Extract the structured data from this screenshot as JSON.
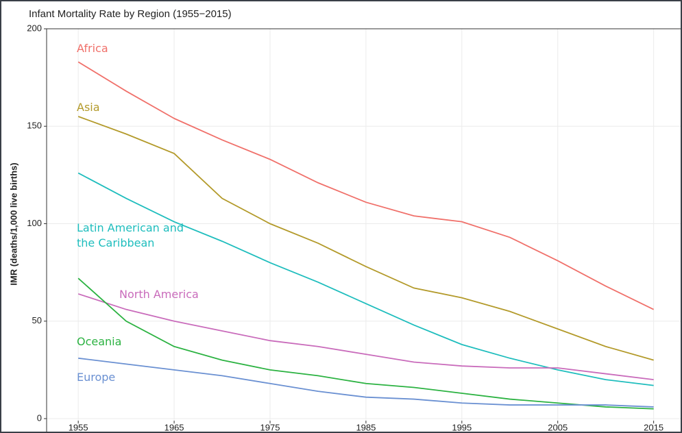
{
  "chart_data": {
    "type": "line",
    "title": "Infant Mortality Rate by Region (1955−2015)",
    "y_label": "IMR (deaths/1,000 live births)",
    "x": [
      1955,
      1960,
      1965,
      1970,
      1975,
      1980,
      1985,
      1990,
      1995,
      2000,
      2005,
      2010,
      2015
    ],
    "series": [
      {
        "name": "Africa",
        "color": "#f0706a",
        "values": [
          183,
          168,
          154,
          143,
          133,
          121,
          111,
          104,
          101,
          93,
          81,
          68,
          56
        ]
      },
      {
        "name": "Asia",
        "color": "#b39a2a",
        "values": [
          155,
          146,
          136,
          113,
          100,
          90,
          78,
          67,
          62,
          55,
          46,
          37,
          30
        ]
      },
      {
        "name": "Latin American and the Caribbean",
        "color": "#1ebdbd",
        "values": [
          126,
          113,
          101,
          91,
          80,
          70,
          59,
          48,
          38,
          31,
          25,
          20,
          17
        ]
      },
      {
        "name": "North America",
        "color": "#c96bbb",
        "values": [
          64,
          56,
          50,
          45,
          40,
          37,
          33,
          29,
          27,
          26,
          26,
          23,
          20
        ]
      },
      {
        "name": "Oceania",
        "color": "#2bb241",
        "values": [
          72,
          50,
          37,
          30,
          25,
          22,
          18,
          16,
          13,
          10,
          8,
          6,
          5
        ]
      },
      {
        "name": "Europe",
        "color": "#6a90d2",
        "values": [
          31,
          28,
          25,
          22,
          18,
          14,
          11,
          10,
          8,
          7,
          7,
          7,
          6
        ]
      }
    ],
    "xlim": [
      1951.7,
      2018.1
    ],
    "ylim": [
      0,
      200
    ],
    "xticks": [
      1955,
      1965,
      1975,
      1985,
      1995,
      2005,
      2015
    ],
    "yticks": [
      0,
      50,
      100,
      150,
      200
    ],
    "grid": true
  }
}
